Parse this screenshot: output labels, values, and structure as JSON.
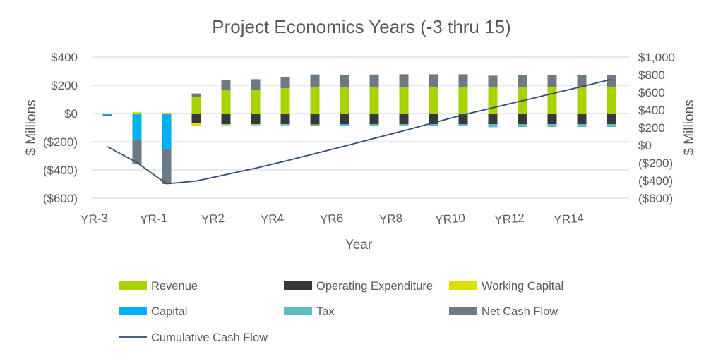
{
  "chart_data": {
    "type": "bar",
    "stacked": true,
    "title": "Project Economics Years (-3 thru 15)",
    "xlabel": "Year",
    "ylabel": "$ Millions",
    "y2label": "$ Millions",
    "ylim": [
      -600,
      400
    ],
    "y2lim": [
      -600,
      1000
    ],
    "yticks": [
      "($600)",
      "($400)",
      "($200)",
      "$0",
      "$200",
      "$400"
    ],
    "y2ticks": [
      "($600)",
      "($400)",
      "($200)",
      "$0",
      "$200",
      "$400",
      "$600",
      "$800",
      "$1,000"
    ],
    "grid": true,
    "legend_position": "bottom",
    "categories": [
      "YR-3",
      "YR-2",
      "YR-1",
      "YR1",
      "YR2",
      "YR3",
      "YR4",
      "YR5",
      "YR6",
      "YR7",
      "YR8",
      "YR9",
      "YR10",
      "YR11",
      "YR12",
      "YR13",
      "YR14",
      "YR15"
    ],
    "x_tick_labels_shown": [
      "YR-3",
      "YR-1",
      "YR2",
      "YR4",
      "YR6",
      "YR8",
      "YR10",
      "YR12",
      "YR14"
    ],
    "series": [
      {
        "name": "Revenue",
        "color": "#A9D300",
        "type": "bar",
        "axis": "left",
        "values": [
          0,
          0,
          0,
          117,
          165,
          170,
          180,
          185,
          188,
          188,
          188,
          188,
          188,
          188,
          188,
          188,
          188,
          188
        ]
      },
      {
        "name": "Operating Expenditure",
        "color": "#363839",
        "type": "bar",
        "axis": "left",
        "values": [
          0,
          0,
          0,
          -65,
          -75,
          -75,
          -75,
          -78,
          -75,
          -75,
          -75,
          -75,
          -75,
          -75,
          -75,
          -75,
          -75,
          -75
        ]
      },
      {
        "name": "Working Capital",
        "color": "#DDDD00",
        "type": "bar",
        "axis": "left",
        "values": [
          0,
          10,
          5,
          -25,
          -3,
          -2,
          -2,
          -2,
          0,
          0,
          0,
          0,
          0,
          0,
          0,
          0,
          0,
          0
        ]
      },
      {
        "name": "Capital",
        "color": "#00B0F0",
        "type": "bar",
        "axis": "left",
        "values": [
          -10,
          -185,
          -252,
          0,
          0,
          0,
          0,
          0,
          -3,
          0,
          0,
          0,
          0,
          0,
          0,
          0,
          0,
          0
        ]
      },
      {
        "name": "Tax",
        "color": "#5BBDC0",
        "type": "bar",
        "axis": "left",
        "values": [
          0,
          0,
          0,
          0,
          -5,
          -6,
          -7,
          -8,
          -10,
          -15,
          -12,
          -12,
          -12,
          -22,
          -20,
          -20,
          -20,
          -20
        ]
      },
      {
        "name": "Net Cash Flow",
        "color": "#6E7A83",
        "type": "bar",
        "axis": "left",
        "values": [
          -8,
          -170,
          -248,
          25,
          72,
          73,
          80,
          92,
          85,
          88,
          90,
          90,
          90,
          80,
          82,
          83,
          83,
          85
        ]
      },
      {
        "name": "Cumulative Cash Flow",
        "color": "#2F4B7C",
        "type": "line",
        "axis": "right",
        "values": [
          -15,
          -197,
          -437,
          -405,
          -333,
          -260,
          -180,
          -95,
          -10,
          78,
          165,
          255,
          345,
          425,
          505,
          585,
          665,
          748
        ]
      }
    ]
  }
}
